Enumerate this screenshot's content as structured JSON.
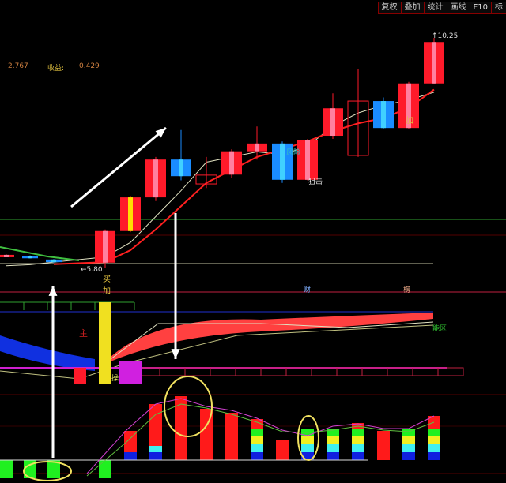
{
  "toolbar": {
    "buttons": [
      "复权",
      "叠加",
      "统计",
      "画线",
      "F10",
      "标"
    ]
  },
  "info": {
    "value1": "2.767",
    "profit_label": "收益:",
    "profit_value": "0.429"
  },
  "annotations": {
    "low_price": "←5.80",
    "high_price": "↑10.25",
    "buy": "买",
    "add1": "加",
    "add2": "加",
    "risk": "风险",
    "snipe": "狙击",
    "cai": "财",
    "bang": "榜",
    "zone": "能区",
    "main_mark": "主",
    "op_mark": "操"
  },
  "colors": {
    "up": "#ff1a2a",
    "down": "#1a8cff",
    "ma_red": "#ff2020",
    "ma_white": "#e0e0c0",
    "ma_green": "#40c040",
    "background": "#000000"
  },
  "chart_data": {
    "type": "candlestick",
    "price_range": [
      5.8,
      10.25
    ],
    "candles": [
      {
        "open": 6.03,
        "close": 6.06,
        "high": 6.07,
        "low": 6.02,
        "dir": "up"
      },
      {
        "open": 6.04,
        "close": 6.0,
        "high": 6.05,
        "low": 5.99,
        "dir": "down"
      },
      {
        "open": 5.97,
        "close": 5.92,
        "high": 5.98,
        "low": 5.91,
        "dir": "down"
      },
      {
        "open": 5.91,
        "close": 6.52,
        "high": 6.55,
        "low": 5.8,
        "dir": "up"
      },
      {
        "open": 6.52,
        "close": 7.17,
        "high": 7.2,
        "low": 6.5,
        "dir": "up",
        "accent": "yellow"
      },
      {
        "open": 7.17,
        "close": 7.9,
        "high": 7.95,
        "low": 7.1,
        "dir": "up"
      },
      {
        "open": 7.9,
        "close": 7.58,
        "high": 8.47,
        "low": 7.5,
        "dir": "down"
      },
      {
        "open": 7.43,
        "close": 7.6,
        "high": 7.95,
        "low": 7.35,
        "dir": "up",
        "hollow": true
      },
      {
        "open": 7.61,
        "close": 8.06,
        "high": 8.1,
        "low": 7.55,
        "dir": "up"
      },
      {
        "open": 8.06,
        "close": 8.21,
        "high": 8.54,
        "low": 7.9,
        "dir": "up"
      },
      {
        "open": 8.21,
        "close": 7.51,
        "high": 8.25,
        "low": 7.45,
        "dir": "down"
      },
      {
        "open": 7.51,
        "close": 8.28,
        "high": 8.3,
        "low": 7.5,
        "dir": "up"
      },
      {
        "open": 8.36,
        "close": 8.89,
        "high": 9.18,
        "low": 8.3,
        "dir": "up"
      },
      {
        "open": 7.98,
        "close": 9.03,
        "high": 9.64,
        "low": 7.95,
        "dir": "up",
        "hollow": true
      },
      {
        "open": 9.03,
        "close": 8.51,
        "high": 9.1,
        "low": 8.5,
        "dir": "down"
      },
      {
        "open": 8.51,
        "close": 9.37,
        "high": 9.4,
        "low": 8.5,
        "dir": "up"
      },
      {
        "open": 9.37,
        "close": 10.17,
        "high": 10.25,
        "low": 9.35,
        "dir": "up"
      }
    ],
    "ma_red": [
      null,
      null,
      5.88,
      5.92,
      6.15,
      6.55,
      7.0,
      7.45,
      7.7,
      7.95,
      8.1,
      8.25,
      8.45,
      8.6,
      8.7,
      8.9,
      9.25
    ],
    "ma_white": [
      5.85,
      5.87,
      5.92,
      6.02,
      6.3,
      6.8,
      7.3,
      7.85,
      7.95,
      8.05,
      8.0,
      8.15,
      8.55,
      8.8,
      8.95,
      9.05,
      9.2
    ],
    "histogram": {
      "values": [
        -23,
        -23,
        -23,
        -23,
        37,
        71,
        81,
        65,
        60,
        52,
        26,
        34,
        40,
        47,
        37,
        39,
        56
      ],
      "styles": [
        "green",
        "green",
        "green",
        "green",
        "red-blue",
        "red-cyan-blue",
        "red",
        "red",
        "red",
        "multi",
        "red",
        "multi",
        "multi",
        "multi",
        "red",
        "multi",
        "multi"
      ]
    }
  }
}
